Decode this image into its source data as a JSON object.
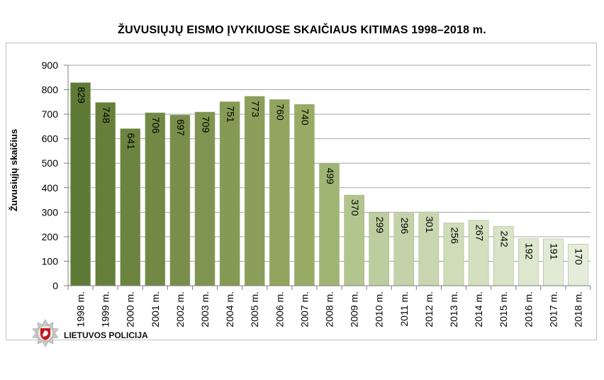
{
  "chart_data": {
    "type": "bar",
    "title": "ŽUVUSIŲJŲ EISMO ĮVYKIUOSE SKAIČIAUS KITIMAS 1998–2018 m.",
    "xlabel": "",
    "ylabel": "Žuvusiųjų skaičius",
    "ylim": [
      0,
      900
    ],
    "yticks": [
      "0",
      "100",
      "200",
      "300",
      "400",
      "500",
      "600",
      "700",
      "800",
      "900"
    ],
    "grid": true,
    "categories": [
      "1998 m.",
      "1999 m.",
      "2000 m.",
      "2001 m.",
      "2002 m.",
      "2003 m.",
      "2004 m.",
      "2005 m.",
      "2006 m.",
      "2007 m.",
      "2008 m.",
      "2009 m.",
      "2010 m.",
      "2011 m.",
      "2012 m.",
      "2013 m.",
      "2014 m.",
      "2015 m.",
      "2016 m.",
      "2017 m.",
      "2018 m."
    ],
    "values": [
      829,
      748,
      641,
      706,
      697,
      709,
      751,
      773,
      760,
      740,
      499,
      370,
      299,
      296,
      301,
      256,
      267,
      242,
      192,
      191,
      170
    ],
    "bar_colors": [
      "#5f7a36",
      "#667f3b",
      "#6c8440",
      "#728945",
      "#788e4a",
      "#7e9450",
      "#859a55",
      "#8b9f5a",
      "#91a55f",
      "#97ab65",
      "#a0b474",
      "#b2c58f",
      "#bccd9f",
      "#c3d2a9",
      "#c9d6b1",
      "#ceddb8",
      "#d3e0bf",
      "#d8e4c6",
      "#dde7cd",
      "#e1ead4",
      "#e5edda"
    ],
    "bar_border_color": "#9aae7a",
    "grid_color": "#a6a6a6"
  },
  "logo": {
    "text": "LIETUVOS POLICIJA",
    "icon": "police-star-emblem-icon",
    "colors": {
      "star": "#c8c8c8",
      "shield": "#c4161c"
    }
  }
}
